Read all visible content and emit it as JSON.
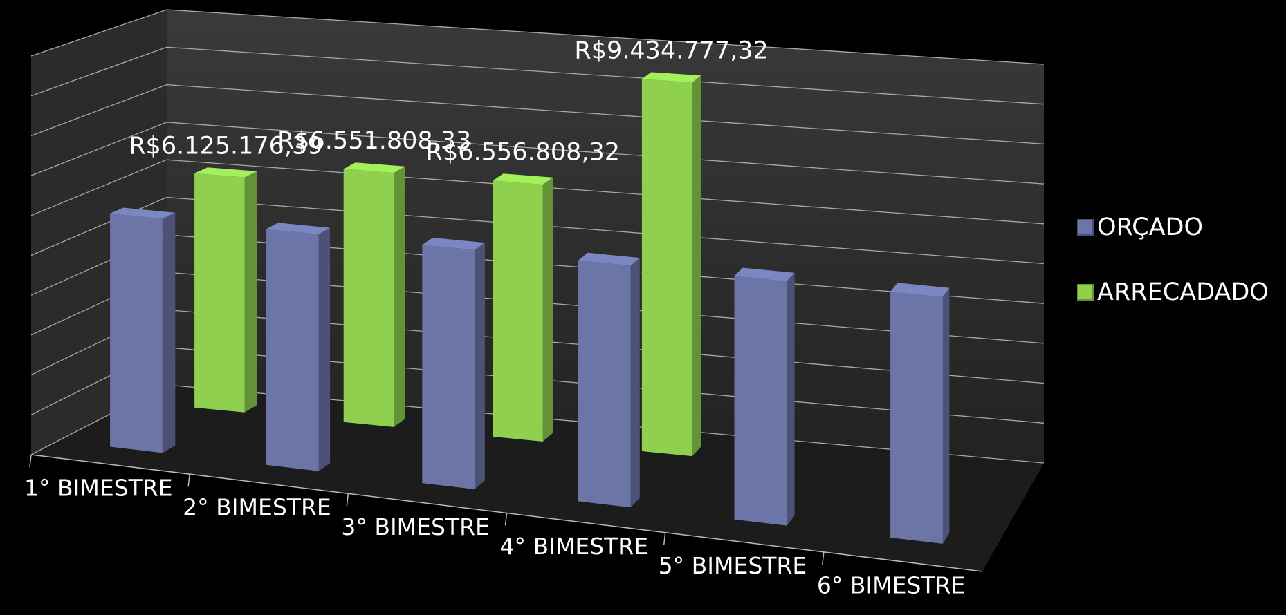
{
  "chart_data": {
    "type": "bar3d",
    "categories": [
      "1° BIMESTRE",
      "2° BIMESTRE",
      "3° BIMESTRE",
      "4° BIMESTRE",
      "5° BIMESTRE",
      "6° BIMESTRE"
    ],
    "series": [
      {
        "name": "ORÇADO",
        "color": "#6b75a8",
        "values": [
          5900000,
          5900000,
          5900000,
          5900000,
          5900000,
          5900000
        ]
      },
      {
        "name": "ARRECADADO",
        "color": "#8fd14f",
        "values": [
          6125176.39,
          6551808.33,
          6556808.32,
          9434777.32,
          null,
          null
        ],
        "value_labels": [
          "R$6.125.176,39",
          "R$6.551.808,33",
          "R$6.556.808,32",
          "R$9.434.777,32",
          null,
          null
        ]
      }
    ],
    "ylim": [
      0,
      10000000
    ],
    "yticks": [
      0,
      1000000,
      2000000,
      3000000,
      4000000,
      5000000,
      6000000,
      7000000,
      8000000,
      9000000,
      10000000
    ],
    "grid": true,
    "legend": "right"
  }
}
